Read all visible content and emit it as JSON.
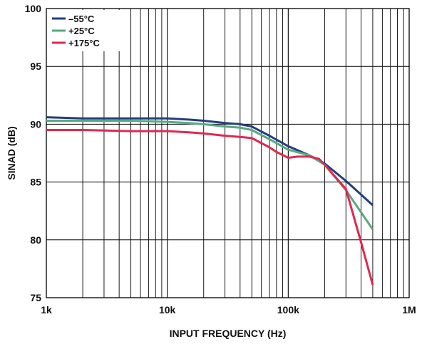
{
  "chart_data": {
    "type": "line",
    "title": "",
    "xlabel": "INPUT FREQUENCY (Hz)",
    "ylabel": "SINAD (dB)",
    "xscale": "log",
    "xlim": [
      1000,
      1000000
    ],
    "ylim": [
      75,
      100
    ],
    "x_ticks": [
      1000,
      10000,
      100000,
      1000000
    ],
    "x_tick_labels": [
      "1k",
      "10k",
      "100k",
      "1M"
    ],
    "y_ticks": [
      75,
      80,
      85,
      90,
      95,
      100
    ],
    "y_tick_labels": [
      "75",
      "80",
      "85",
      "90",
      "95",
      "100"
    ],
    "grid": true,
    "legend_position": "top-left",
    "series": [
      {
        "name": "–55°C",
        "color": "#253e7a",
        "x": [
          1000,
          2000,
          5000,
          10000,
          15000,
          20000,
          30000,
          40000,
          50000,
          70000,
          100000,
          150000,
          200000,
          300000,
          500000
        ],
        "y": [
          90.6,
          90.5,
          90.5,
          90.5,
          90.4,
          90.3,
          90.1,
          90.0,
          89.8,
          89.0,
          88.1,
          87.3,
          86.6,
          85.1,
          83.0
        ]
      },
      {
        "name": "+25°C",
        "color": "#5aa882",
        "x": [
          1000,
          2000,
          5000,
          10000,
          15000,
          20000,
          30000,
          40000,
          50000,
          70000,
          100000,
          150000,
          200000,
          300000,
          500000
        ],
        "y": [
          90.3,
          90.3,
          90.3,
          90.2,
          90.1,
          90.0,
          89.8,
          89.7,
          89.5,
          88.7,
          87.8,
          87.3,
          86.5,
          84.3,
          80.9
        ]
      },
      {
        "name": "+175°C",
        "color": "#e0294f",
        "x": [
          1000,
          2000,
          5000,
          10000,
          15000,
          20000,
          30000,
          40000,
          50000,
          70000,
          80000,
          100000,
          120000,
          150000,
          180000,
          200000,
          300000,
          400000,
          500000
        ],
        "y": [
          89.5,
          89.5,
          89.4,
          89.4,
          89.3,
          89.2,
          89.0,
          88.9,
          88.8,
          88.0,
          87.6,
          87.1,
          87.2,
          87.2,
          87.0,
          86.5,
          84.4,
          79.8,
          76.1
        ]
      }
    ]
  }
}
